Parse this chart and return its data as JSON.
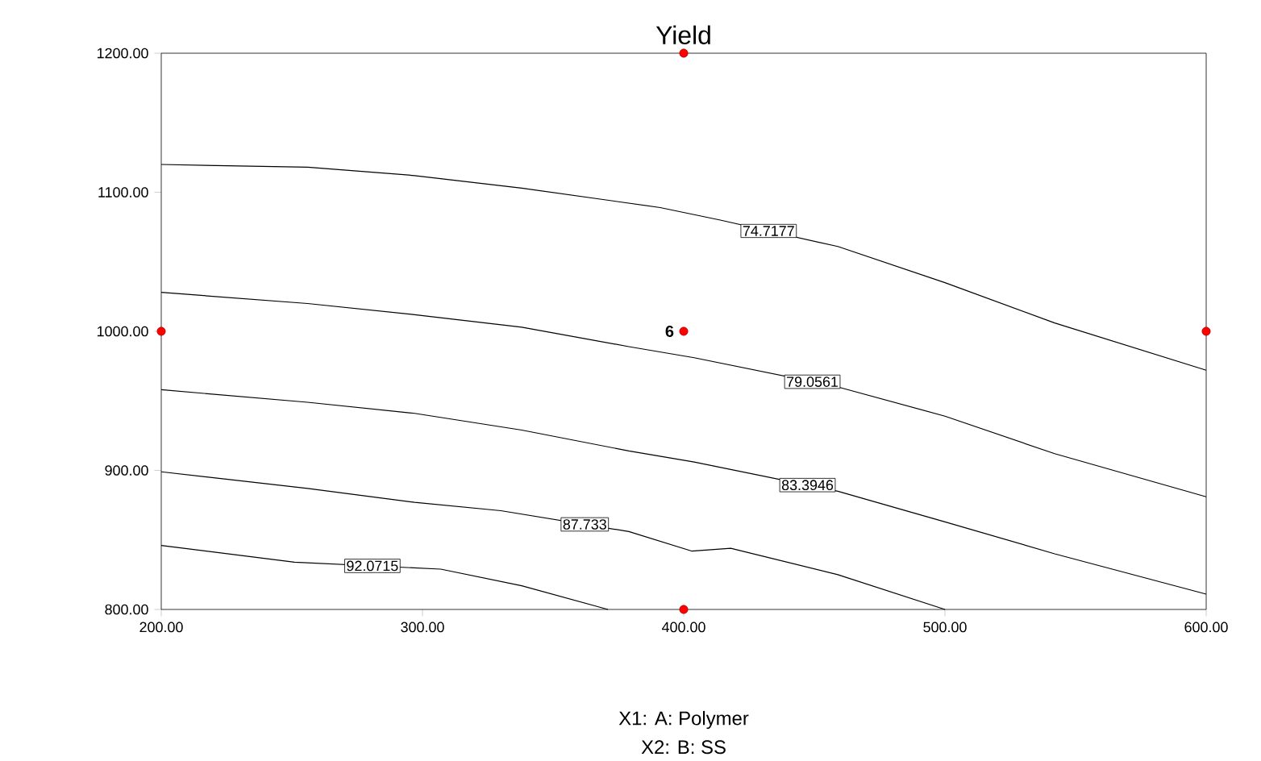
{
  "chart_data": {
    "type": "line",
    "title": "Yield",
    "xlabel": "X1: A: Polymer",
    "xlim": [
      200,
      600
    ],
    "ylim": [
      800,
      1200
    ],
    "xticks": [
      {
        "value": 200,
        "label": "200.00"
      },
      {
        "value": 300,
        "label": "300.00"
      },
      {
        "value": 400,
        "label": "400.00"
      },
      {
        "value": 500,
        "label": "500.00"
      },
      {
        "value": 600,
        "label": "600.00"
      }
    ],
    "yticks": [
      {
        "value": 800,
        "label": "800.00"
      },
      {
        "value": 900,
        "label": "900.00"
      },
      {
        "value": 1000,
        "label": "1000.00"
      },
      {
        "value": 1100,
        "label": "1100.00"
      },
      {
        "value": 1200,
        "label": "1200.00"
      }
    ],
    "marker": "none",
    "line_style": "solid",
    "series": [
      {
        "name": "74.7177",
        "color": "#000000",
        "x": [
          200,
          256,
          297,
          338,
          391,
          414,
          459,
          500,
          542,
          600
        ],
        "values": [
          1120,
          1118,
          1112,
          1103,
          1089,
          1080,
          1061,
          1035,
          1006,
          972
        ]
      },
      {
        "name": "79.0561",
        "color": "#000000",
        "x": [
          200,
          256,
          297,
          338,
          379,
          404,
          459,
          500,
          542,
          600
        ],
        "values": [
          1028,
          1020,
          1012,
          1003,
          989,
          981,
          960,
          939,
          912,
          881
        ]
      },
      {
        "name": "83.3946",
        "color": "#000000",
        "x": [
          200,
          256,
          297,
          338,
          379,
          404,
          459,
          500,
          542,
          600
        ],
        "values": [
          958,
          949,
          941,
          929,
          914,
          906,
          885,
          863,
          840,
          811
        ]
      },
      {
        "name": "87.733",
        "color": "#000000",
        "x": [
          200,
          256,
          297,
          330,
          379,
          403,
          418,
          459,
          500
        ],
        "values": [
          899,
          887,
          877,
          871,
          856,
          842,
          844,
          825,
          800
        ]
      },
      {
        "name": "92.0715",
        "color": "#000000",
        "x": [
          200,
          251,
          307,
          338,
          371
        ],
        "values": [
          846,
          834,
          829,
          817,
          800
        ]
      },
      {
        "type": "scatter",
        "marker": "circle",
        "color": "#ff0000",
        "x": [
          200,
          400,
          400,
          600,
          400
        ],
        "values": [
          1000,
          1200,
          1000,
          1000,
          800
        ]
      }
    ],
    "annotations": [
      {
        "text": "6",
        "x": 400,
        "y": 1000
      },
      "X2: B: SS"
    ]
  }
}
